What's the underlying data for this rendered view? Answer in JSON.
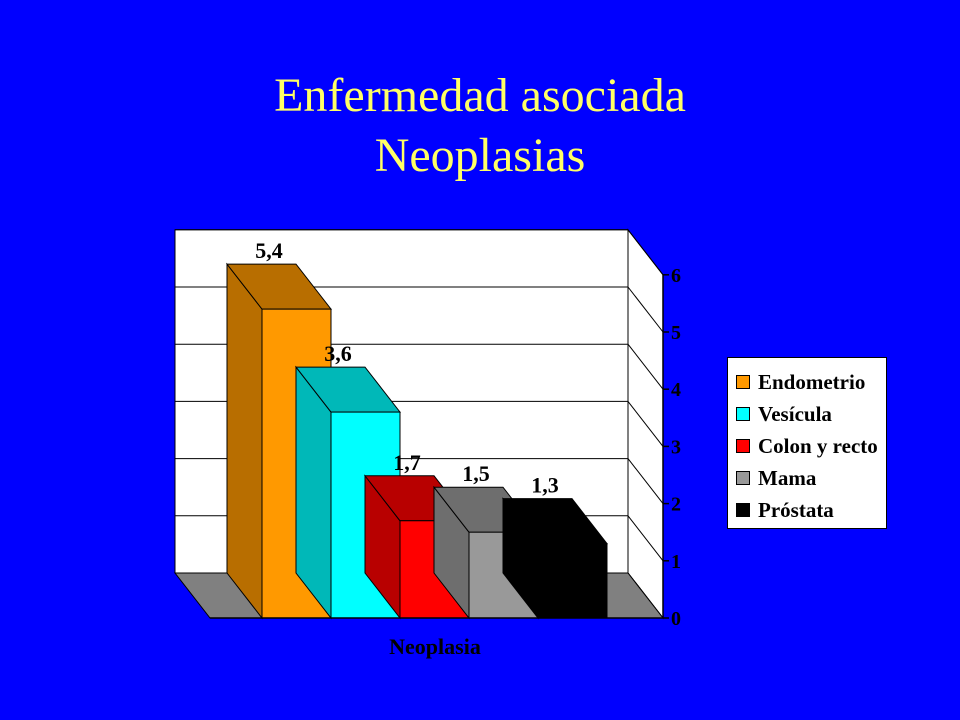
{
  "title_line1": "Enfermedad asociada",
  "title_line2": "Neoplasias",
  "chart_data": {
    "type": "bar",
    "categories": [
      "Endometrio",
      "Vesícula",
      "Colon y recto",
      "Mama",
      "Próstata"
    ],
    "values": [
      5.4,
      3.6,
      1.7,
      1.5,
      1.3
    ],
    "data_labels": [
      "5,4",
      "3,6",
      "1,7",
      "1,5",
      "1,3"
    ],
    "colors": [
      "#FF9900",
      "#00FFFF",
      "#FF0000",
      "#999999",
      "#000000"
    ],
    "xlabel": "Neoplasia",
    "ylabel": "",
    "ylim": [
      0,
      6
    ],
    "y_ticks": [
      0,
      1,
      2,
      3,
      4,
      5,
      6
    ],
    "y_axis_side": "right",
    "grid": true,
    "three_d": true,
    "legend_position": "right",
    "chart_background": "#FFFFFF",
    "floor_color": "#808080"
  }
}
